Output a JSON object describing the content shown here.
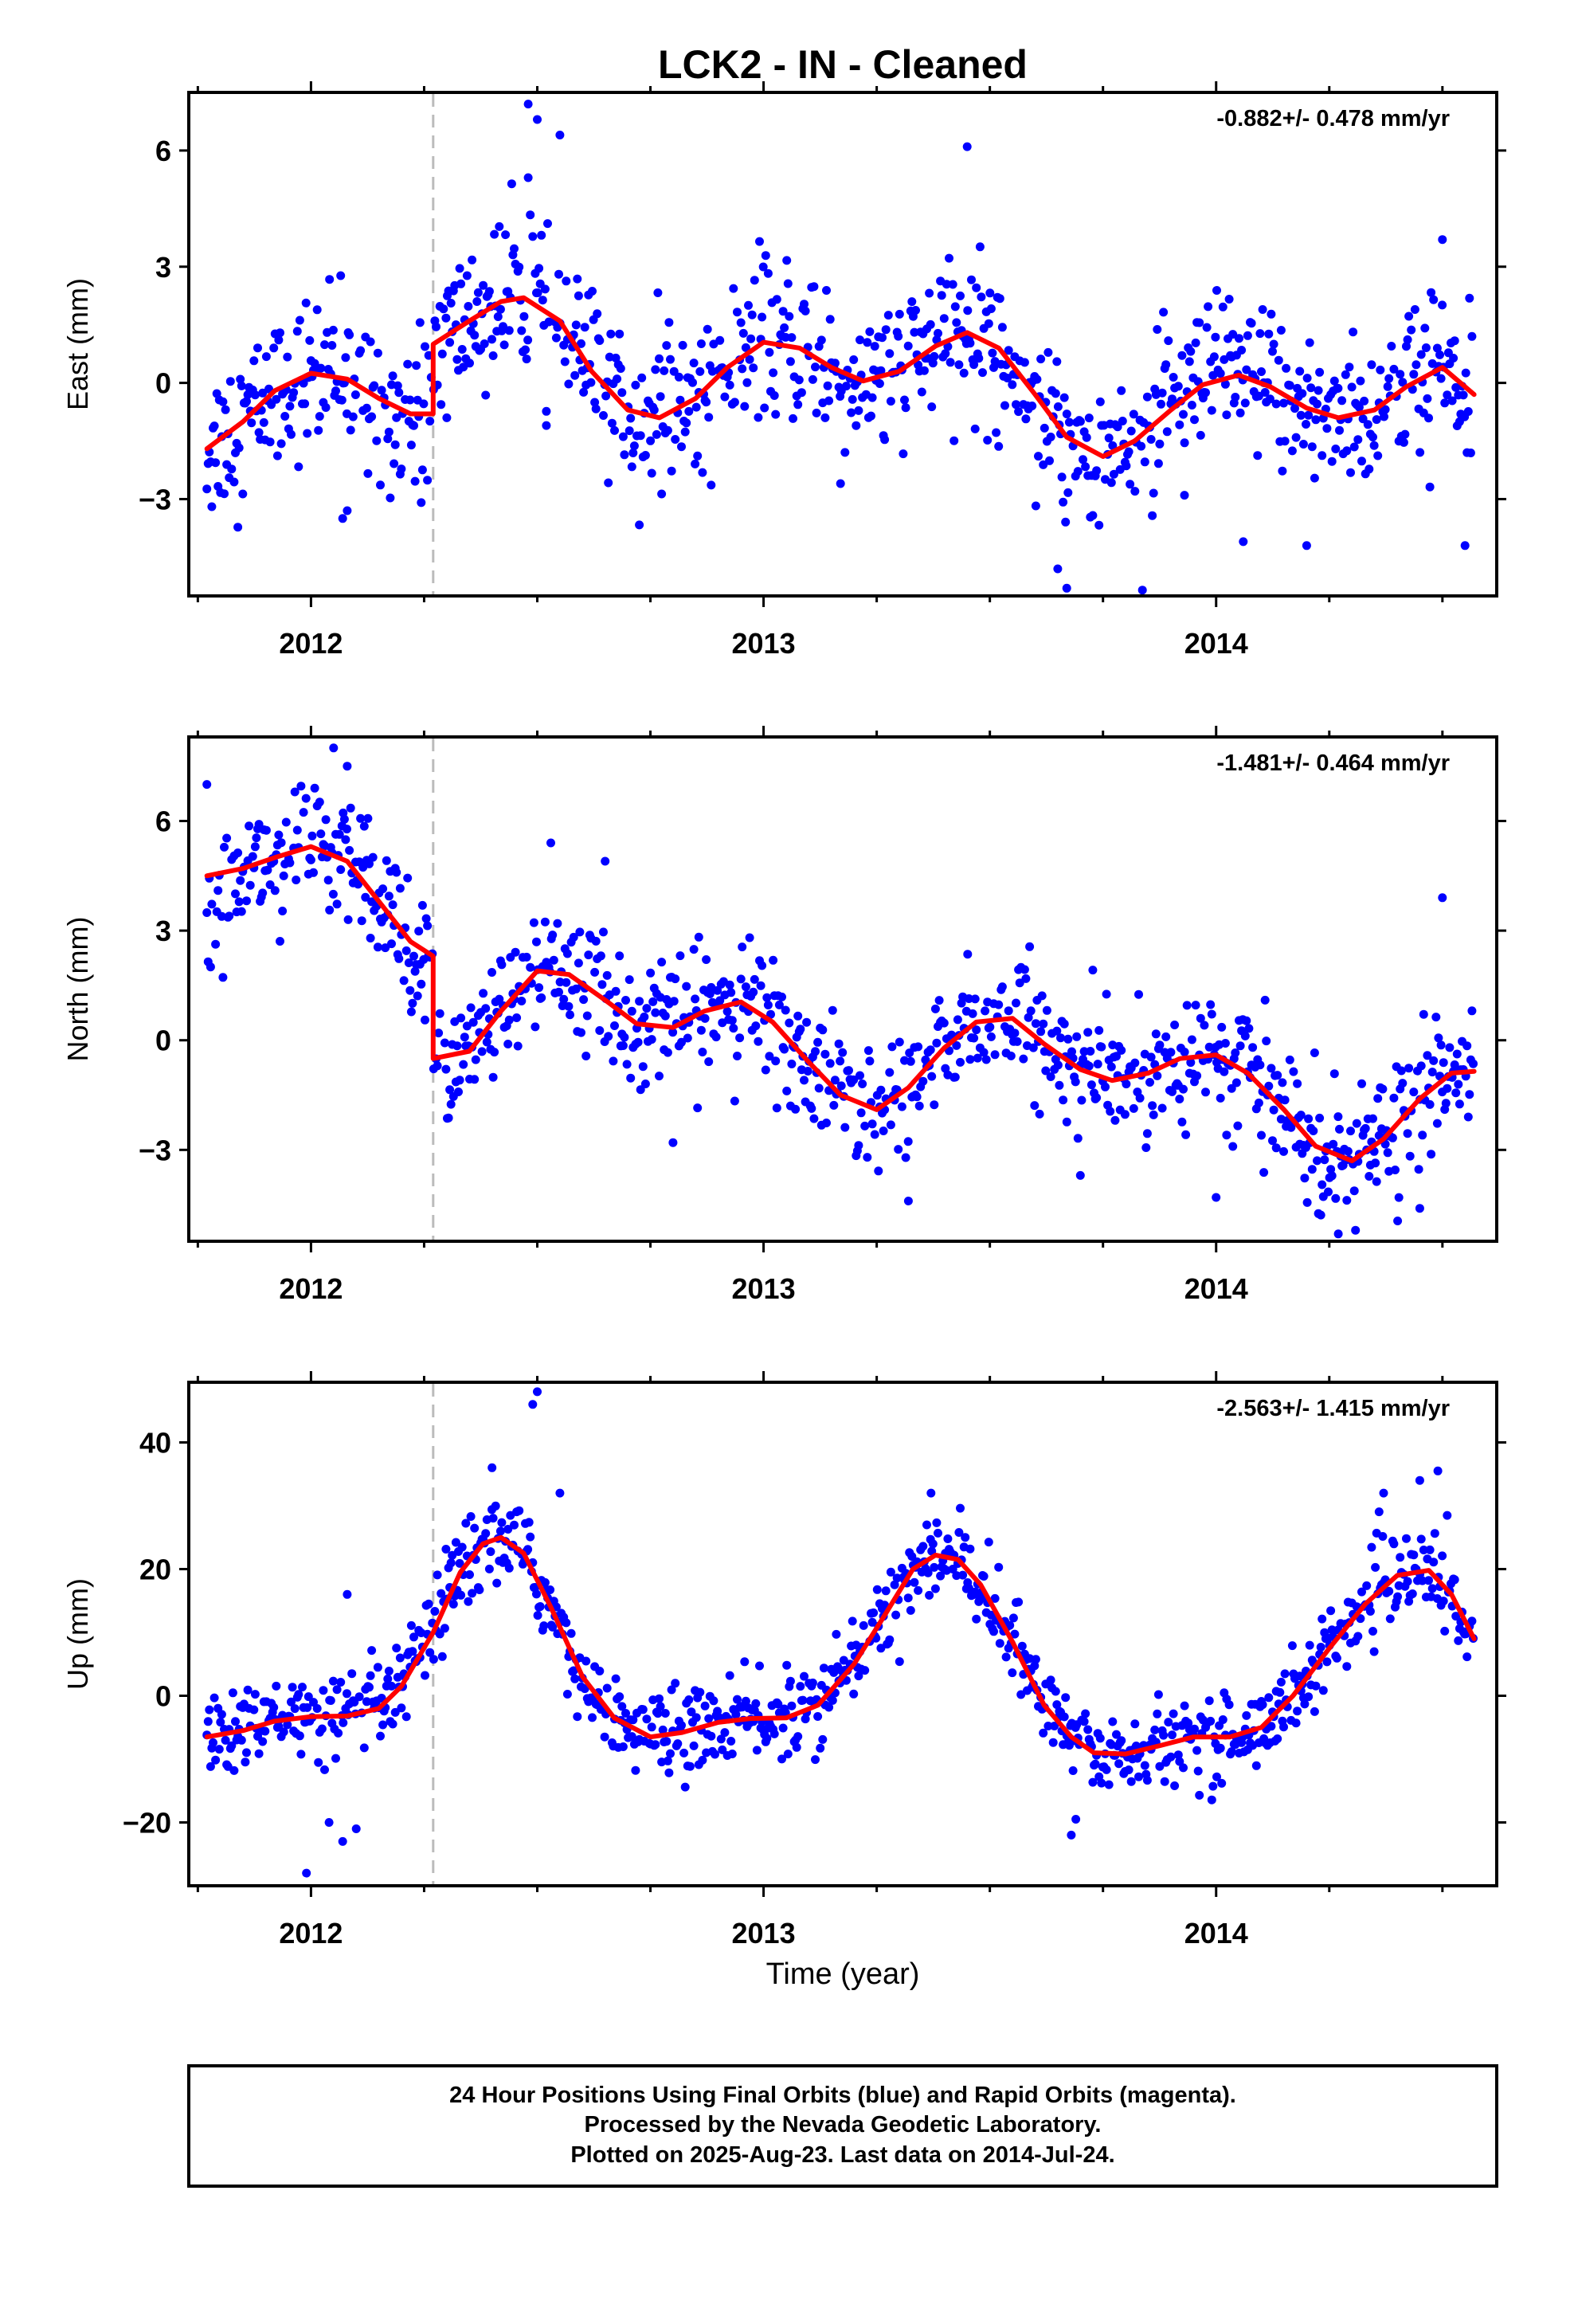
{
  "title": "LCK2  - IN - Cleaned",
  "xlabel": "Time (year)",
  "footer": {
    "line1": "24 Hour Positions Using Final Orbits (blue) and Rapid Orbits (magenta).",
    "line2": "Processed by the Nevada Geodetic Laboratory.",
    "line3": "Plotted on 2025-Aug-23. Last data on 2014-Jul-24."
  },
  "colors": {
    "points": "#0000ff",
    "model": "#ff0000",
    "event_line": "#bbbbbb",
    "frame": "#000000"
  },
  "chart_data": [
    {
      "type": "scatter",
      "component": "East",
      "ylabel": "East (mm)",
      "rate_label": "-0.882+/- 0.478 mm/yr",
      "xlim": [
        2011.73,
        2014.62
      ],
      "ylim": [
        -5.5,
        7.5
      ],
      "yticks": [
        -3,
        0,
        3,
        6
      ],
      "ytick_labels": [
        "−3",
        "0",
        "3",
        "6"
      ],
      "xticks_major": [
        2012,
        2013,
        2014
      ],
      "xticks_minor": [
        2011.75,
        2012.25,
        2012.5,
        2012.75,
        2013.25,
        2013.5,
        2013.75,
        2014.25,
        2014.5
      ],
      "event_line": 2012.27,
      "grid": false,
      "model": {
        "x": [
          2011.77,
          2011.85,
          2011.92,
          2012.0,
          2012.08,
          2012.15,
          2012.22,
          2012.27,
          2012.27,
          2012.35,
          2012.42,
          2012.47,
          2012.55,
          2012.62,
          2012.7,
          2012.77,
          2012.85,
          2012.92,
          2013.0,
          2013.08,
          2013.15,
          2013.22,
          2013.3,
          2013.38,
          2013.45,
          2013.52,
          2013.6,
          2013.67,
          2013.75,
          2013.82,
          2013.9,
          2013.97,
          2014.05,
          2014.12,
          2014.2,
          2014.27,
          2014.35,
          2014.42,
          2014.5,
          2014.57
        ],
        "y": [
          -1.7,
          -1.0,
          -0.2,
          0.25,
          0.1,
          -0.4,
          -0.8,
          -0.8,
          1.0,
          1.6,
          2.1,
          2.2,
          1.6,
          0.3,
          -0.7,
          -0.9,
          -0.4,
          0.4,
          1.05,
          0.9,
          0.4,
          0.05,
          0.3,
          0.95,
          1.3,
          0.9,
          -0.3,
          -1.4,
          -1.9,
          -1.5,
          -0.7,
          -0.05,
          0.2,
          -0.1,
          -0.65,
          -0.9,
          -0.7,
          -0.1,
          0.4,
          -0.3
        ]
      },
      "noise": 1.0,
      "outliers": [
        [
          2012.48,
          7.2
        ],
        [
          2012.5,
          6.8
        ],
        [
          2012.55,
          6.4
        ],
        [
          2013.45,
          6.1
        ],
        [
          2013.67,
          -5.3
        ],
        [
          2013.65,
          -4.8
        ],
        [
          2014.5,
          3.7
        ],
        [
          2014.55,
          -4.2
        ],
        [
          2014.2,
          -4.2
        ],
        [
          2012.07,
          -3.5
        ],
        [
          2012.08,
          -3.3
        ],
        [
          2012.48,
          5.3
        ],
        [
          2012.52,
          -1.1
        ],
        [
          2013.17,
          -2.6
        ],
        [
          2012.3,
          -0.9
        ],
        [
          2013.93,
          -2.9
        ],
        [
          2014.06,
          -4.1
        ]
      ]
    },
    {
      "type": "scatter",
      "component": "North",
      "ylabel": "North (mm)",
      "rate_label": "-1.481+/- 0.464 mm/yr",
      "xlim": [
        2011.73,
        2014.62
      ],
      "ylim": [
        -5.5,
        8.3
      ],
      "yticks": [
        -3,
        0,
        3,
        6
      ],
      "ytick_labels": [
        "−3",
        "0",
        "3",
        "6"
      ],
      "xticks_major": [
        2012,
        2013,
        2014
      ],
      "xticks_minor": [
        2011.75,
        2012.25,
        2012.5,
        2012.75,
        2013.25,
        2013.5,
        2013.75,
        2014.25,
        2014.5
      ],
      "event_line": 2012.27,
      "grid": false,
      "model": {
        "x": [
          2011.77,
          2011.85,
          2011.92,
          2012.0,
          2012.08,
          2012.15,
          2012.22,
          2012.27,
          2012.27,
          2012.35,
          2012.42,
          2012.5,
          2012.57,
          2012.65,
          2012.72,
          2012.8,
          2012.87,
          2012.95,
          2013.02,
          2013.1,
          2013.17,
          2013.25,
          2013.32,
          2013.4,
          2013.47,
          2013.55,
          2013.62,
          2013.7,
          2013.77,
          2013.85,
          2013.92,
          2014.0,
          2014.07,
          2014.15,
          2014.22,
          2014.3,
          2014.37,
          2014.45,
          2014.52,
          2014.57
        ],
        "y": [
          4.5,
          4.7,
          5.0,
          5.3,
          4.9,
          3.8,
          2.7,
          2.3,
          -0.5,
          -0.3,
          0.8,
          1.9,
          1.8,
          1.1,
          0.45,
          0.35,
          0.8,
          1.05,
          0.5,
          -0.6,
          -1.5,
          -1.9,
          -1.3,
          -0.2,
          0.5,
          0.6,
          -0.1,
          -0.8,
          -1.1,
          -0.9,
          -0.5,
          -0.4,
          -0.9,
          -1.9,
          -2.9,
          -3.3,
          -2.7,
          -1.6,
          -0.9,
          -0.85
        ]
      },
      "noise": 0.85,
      "outliers": [
        [
          2012.05,
          8.0
        ],
        [
          2012.08,
          7.5
        ],
        [
          2011.77,
          7.0
        ],
        [
          2012.53,
          5.4
        ],
        [
          2012.65,
          4.9
        ],
        [
          2014.5,
          3.9
        ],
        [
          2013.32,
          -4.4
        ],
        [
          2014.0,
          -4.3
        ],
        [
          2014.27,
          -5.3
        ],
        [
          2014.45,
          -4.6
        ],
        [
          2013.7,
          -3.7
        ],
        [
          2012.8,
          -2.8
        ]
      ]
    },
    {
      "type": "scatter",
      "component": "Up",
      "ylabel": "Up (mm)",
      "rate_label": "-2.563+/- 1.415 mm/yr",
      "xlim": [
        2011.73,
        2014.62
      ],
      "ylim": [
        -30,
        49.5
      ],
      "yticks": [
        -20,
        0,
        20,
        40
      ],
      "ytick_labels": [
        "−20",
        "0",
        "20",
        "40"
      ],
      "xticks_major": [
        2012,
        2013,
        2014
      ],
      "xticks_minor": [
        2011.75,
        2012.25,
        2012.5,
        2012.75,
        2013.25,
        2013.5,
        2013.75,
        2014.25,
        2014.5
      ],
      "event_line": 2012.27,
      "grid": false,
      "model": {
        "x": [
          2011.77,
          2011.85,
          2011.92,
          2012.0,
          2012.08,
          2012.15,
          2012.2,
          2012.27,
          2012.33,
          2012.38,
          2012.42,
          2012.47,
          2012.53,
          2012.6,
          2012.67,
          2012.75,
          2012.82,
          2012.9,
          2012.97,
          2013.05,
          2013.12,
          2013.2,
          2013.27,
          2013.33,
          2013.38,
          2013.43,
          2013.48,
          2013.55,
          2013.62,
          2013.68,
          2013.73,
          2013.8,
          2013.88,
          2013.95,
          2014.03,
          2014.1,
          2014.17,
          2014.25,
          2014.33,
          2014.4,
          2014.47,
          2014.52,
          2014.57
        ],
        "y": [
          -6.5,
          -5.5,
          -4.0,
          -3.3,
          -3.2,
          -2.0,
          1.5,
          10.0,
          19.5,
          24.0,
          25.0,
          22.5,
          14.0,
          3.0,
          -3.5,
          -6.5,
          -5.8,
          -4.2,
          -3.6,
          -3.5,
          -1.5,
          5.0,
          13.0,
          20.0,
          22.2,
          21.5,
          17.5,
          8.5,
          -1.5,
          -6.5,
          -9.0,
          -9.2,
          -7.8,
          -6.5,
          -6.5,
          -5.0,
          0.0,
          7.5,
          14.5,
          19.0,
          19.8,
          16.0,
          9.0
        ]
      },
      "noise": 3.3,
      "outliers": [
        [
          2012.5,
          48.0
        ],
        [
          2012.49,
          46.0
        ],
        [
          2011.99,
          -28.0
        ],
        [
          2013.68,
          -22.0
        ],
        [
          2013.69,
          -19.5
        ],
        [
          2012.08,
          16.0
        ],
        [
          2012.07,
          -23.0
        ],
        [
          2012.1,
          -21.0
        ],
        [
          2012.04,
          -20.0
        ],
        [
          2013.37,
          32.0
        ],
        [
          2014.37,
          32.0
        ],
        [
          2014.49,
          35.5
        ],
        [
          2014.45,
          34.0
        ],
        [
          2012.55,
          32.0
        ],
        [
          2012.4,
          36.0
        ]
      ]
    }
  ]
}
